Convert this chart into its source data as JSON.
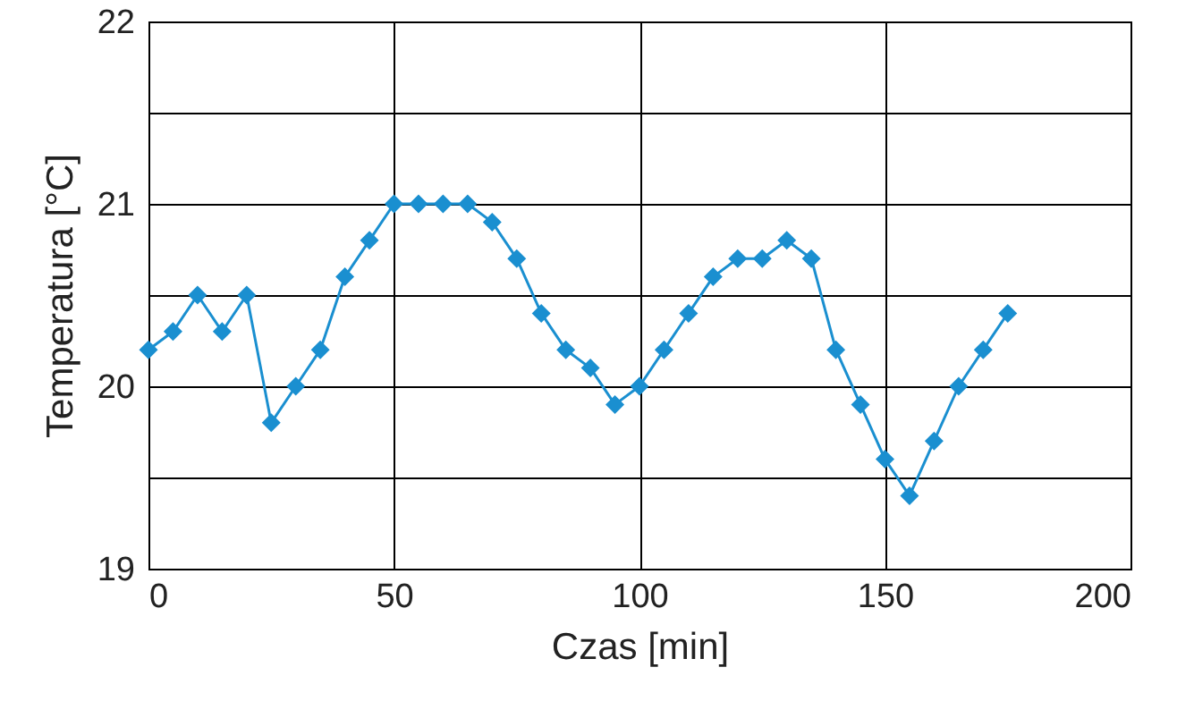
{
  "chart_data": {
    "type": "line",
    "xlabel": "Czas [min]",
    "ylabel": "Temperatura [°C]",
    "x": [
      0,
      5,
      10,
      15,
      20,
      25,
      30,
      35,
      40,
      45,
      50,
      55,
      60,
      65,
      70,
      75,
      80,
      85,
      90,
      95,
      100,
      105,
      110,
      115,
      120,
      125,
      130,
      135,
      140,
      145,
      150,
      155,
      160,
      165,
      170,
      175
    ],
    "series": [
      {
        "color": "#1a8fd0",
        "values": [
          20.2,
          20.3,
          20.5,
          20.3,
          20.5,
          19.8,
          20.0,
          20.2,
          20.6,
          20.8,
          21.0,
          21.0,
          21.0,
          21.0,
          20.9,
          20.7,
          20.4,
          20.2,
          20.1,
          19.9,
          20.0,
          20.2,
          20.4,
          20.6,
          20.7,
          20.7,
          20.8,
          20.7,
          20.2,
          19.9,
          19.6,
          19.4,
          19.7,
          20.0,
          20.2,
          20.4
        ]
      }
    ],
    "xlim": [
      0,
      200
    ],
    "xticks": [
      0,
      50,
      100,
      150,
      200
    ],
    "ylim": [
      19,
      22
    ],
    "yticks": [
      19,
      {
        "value": 19.5,
        "label": null
      },
      20,
      {
        "value": 20.5,
        "label": null
      },
      21,
      {
        "value": 21.5,
        "label": null
      },
      22
    ],
    "grid": true,
    "marker": "diamond",
    "line_style": "solid"
  }
}
